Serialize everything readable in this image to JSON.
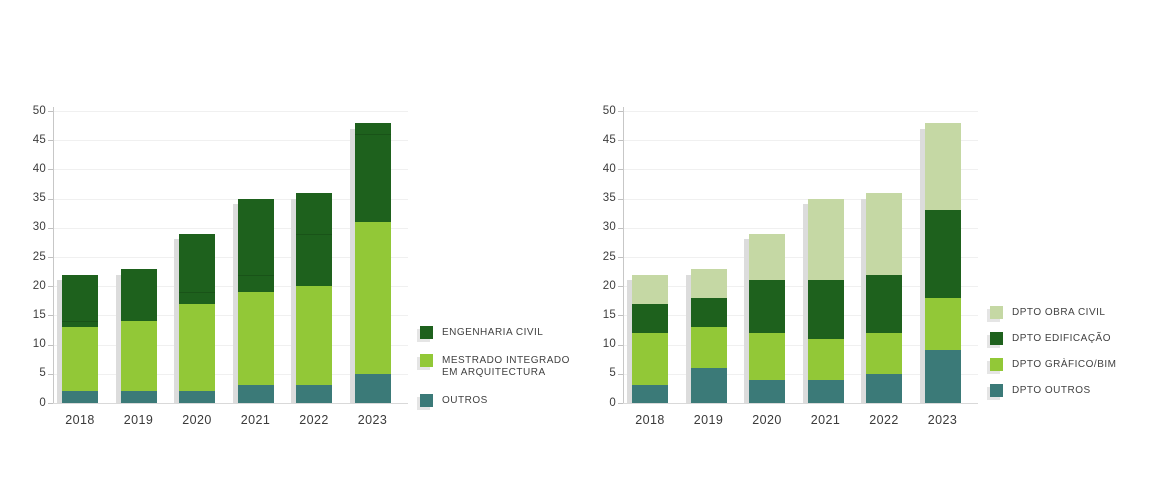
{
  "colors": {
    "dark_green": "#1e611d",
    "light_green": "#92c837",
    "teal": "#3b7a78",
    "pale_green": "#c5d8a4",
    "bar_shadow": "#dcdcdc",
    "grid": "#f0f0f0",
    "baseline": "#d9d9d9",
    "axis": "#c7c7c7",
    "tick_text": "#3c3c3c",
    "legend_text": "#414141"
  },
  "chart_data": [
    {
      "type": "bar",
      "stacked": true,
      "title": "",
      "xlabel": "",
      "ylabel": "",
      "categories": [
        "2018",
        "2019",
        "2020",
        "2021",
        "2022",
        "2023"
      ],
      "series": [
        {
          "name": "OUTROS",
          "color_key": "teal",
          "values": [
            2,
            2,
            2,
            3,
            3,
            5
          ]
        },
        {
          "name": "MESTRADO INTEGRADO EM ARQUITECTURA",
          "color_key": "light_green",
          "values": [
            11,
            12,
            15,
            16,
            17,
            26
          ]
        },
        {
          "name": "ENGENHARIA CIVIL",
          "color_key": "dark_green",
          "values": [
            9,
            9,
            12,
            16,
            16,
            17
          ]
        }
      ],
      "totals": [
        22,
        23,
        29,
        35,
        36,
        48
      ],
      "divider_values": [
        14,
        null,
        19,
        22,
        29,
        46
      ],
      "ylim": [
        0,
        50
      ],
      "ytick_step": 5,
      "grid": true,
      "legend_position": "right",
      "legend": [
        {
          "label": "ENGENHARIA CIVIL",
          "color_key": "dark_green"
        },
        {
          "label": "MESTRADO INTEGRADO EM ARQUITECTURA",
          "color_key": "light_green"
        },
        {
          "label": "OUTROS",
          "color_key": "teal"
        }
      ]
    },
    {
      "type": "bar",
      "stacked": true,
      "title": "",
      "xlabel": "",
      "ylabel": "",
      "categories": [
        "2018",
        "2019",
        "2020",
        "2021",
        "2022",
        "2023"
      ],
      "series": [
        {
          "name": "DPTO OUTROS",
          "color_key": "teal",
          "values": [
            3,
            6,
            4,
            4,
            5,
            9
          ]
        },
        {
          "name": "DPTO GRÀFICO/BIM",
          "color_key": "light_green",
          "values": [
            9,
            7,
            8,
            7,
            7,
            9
          ]
        },
        {
          "name": "DPTO EDIFICAÇÃO",
          "color_key": "dark_green",
          "values": [
            5,
            5,
            9,
            10,
            10,
            15
          ]
        },
        {
          "name": "DPTO OBRA CIVIL",
          "color_key": "pale_green",
          "values": [
            5,
            5,
            8,
            14,
            14,
            15
          ]
        }
      ],
      "totals": [
        22,
        23,
        29,
        35,
        36,
        48
      ],
      "divider_values": [
        null,
        null,
        null,
        null,
        null,
        null
      ],
      "ylim": [
        0,
        50
      ],
      "ytick_step": 5,
      "grid": true,
      "legend_position": "right",
      "legend": [
        {
          "label": "DPTO OBRA CIVIL",
          "color_key": "pale_green"
        },
        {
          "label": "DPTO EDIFICAÇÃO",
          "color_key": "dark_green"
        },
        {
          "label": "DPTO GRÀFICO/BIM",
          "color_key": "light_green"
        },
        {
          "label": "DPTO OUTROS",
          "color_key": "teal"
        }
      ]
    }
  ]
}
